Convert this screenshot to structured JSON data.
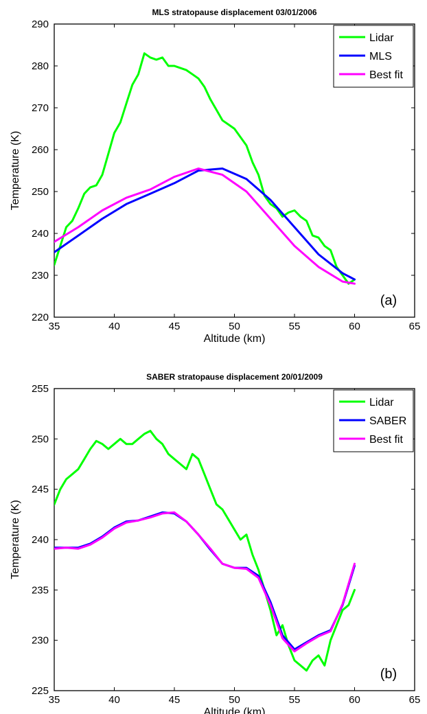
{
  "colors": {
    "lidar": "#00ff00",
    "model": "#0000ff",
    "best_fit": "#ff00ff"
  },
  "chart_data": [
    {
      "type": "line",
      "title": "MLS  stratopause displacement 03/01/2006",
      "xlabel": "Altitude (km)",
      "ylabel": "Temperature (K)",
      "xlim": [
        35,
        65
      ],
      "ylim": [
        220,
        290
      ],
      "xticks": [
        35,
        40,
        45,
        50,
        55,
        60,
        65
      ],
      "yticks": [
        220,
        230,
        240,
        250,
        260,
        270,
        280,
        290
      ],
      "grid": false,
      "legend_position": "top-right",
      "panel_label": "(a)",
      "series": [
        {
          "name": "Lidar",
          "color": "#00ff00",
          "x": [
            35,
            35.5,
            36,
            36.5,
            37,
            37.5,
            38,
            38.5,
            39,
            39.5,
            40,
            40.5,
            41,
            41.5,
            42,
            42.5,
            43,
            43.5,
            44,
            44.5,
            45,
            45.5,
            46,
            46.5,
            47,
            47.5,
            48,
            48.5,
            49,
            49.5,
            50,
            50.5,
            51,
            51.5,
            52,
            52.5,
            53,
            53.5,
            54,
            54.5,
            55,
            55.5,
            56,
            56.5,
            57,
            57.5,
            58,
            58.5,
            59,
            59.5,
            60
          ],
          "y": [
            232.5,
            237,
            241.5,
            243,
            246,
            249.5,
            251,
            251.5,
            254,
            259,
            264,
            266.5,
            271,
            275.5,
            278,
            283,
            282,
            281.5,
            282,
            280,
            280,
            279.5,
            279,
            278,
            277,
            275,
            272,
            269.5,
            267,
            266,
            265,
            263,
            261,
            257,
            254,
            249,
            247,
            246,
            244,
            245,
            245.5,
            244,
            243,
            239.5,
            239,
            237,
            236,
            232,
            230,
            228,
            229
          ]
        },
        {
          "name": "MLS",
          "color": "#0000ff",
          "x": [
            35,
            37,
            39,
            41,
            43,
            45,
            47,
            49,
            51,
            53,
            55,
            57,
            59,
            60
          ],
          "y": [
            235.5,
            239.5,
            243.5,
            247,
            249.5,
            252,
            255,
            255.5,
            253,
            248,
            241.5,
            235,
            230.5,
            229
          ]
        },
        {
          "name": "Best fit",
          "color": "#ff00ff",
          "x": [
            35,
            37,
            39,
            41,
            43,
            45,
            47,
            49,
            51,
            53,
            55,
            57,
            59,
            60
          ],
          "y": [
            238,
            241.5,
            245.5,
            248.5,
            250.5,
            253.5,
            255.5,
            254,
            250,
            243.5,
            237,
            232,
            228.5,
            228
          ]
        }
      ]
    },
    {
      "type": "line",
      "title": "SABER stratopause displacement 20/01/2009",
      "xlabel": "Altitude (km)",
      "ylabel": "Temperature (K)",
      "xlim": [
        35,
        65
      ],
      "ylim": [
        225,
        255
      ],
      "xticks": [
        35,
        40,
        45,
        50,
        55,
        60,
        65
      ],
      "yticks": [
        225,
        230,
        235,
        240,
        245,
        250,
        255
      ],
      "grid": false,
      "legend_position": "top-right",
      "panel_label": "(b)",
      "series": [
        {
          "name": "Lidar",
          "color": "#00ff00",
          "x": [
            35,
            35.5,
            36,
            36.5,
            37,
            37.5,
            38,
            38.5,
            39,
            39.5,
            40,
            40.5,
            41,
            41.5,
            42,
            42.5,
            43,
            43.5,
            44,
            44.5,
            45,
            45.5,
            46,
            46.5,
            47,
            47.5,
            48,
            48.5,
            49,
            49.5,
            50,
            50.5,
            51,
            51.5,
            52,
            52.5,
            53,
            53.5,
            54,
            54.5,
            55,
            55.5,
            56,
            56.5,
            57,
            57.5,
            58,
            58.5,
            59,
            59.5,
            60
          ],
          "y": [
            243.5,
            245,
            246,
            246.5,
            247,
            248,
            249,
            249.8,
            249.5,
            249,
            249.5,
            250,
            249.5,
            249.5,
            250,
            250.5,
            250.8,
            250,
            249.5,
            248.5,
            248,
            247.5,
            247,
            248.5,
            248,
            246.5,
            245,
            243.5,
            243,
            242,
            241,
            240,
            240.5,
            238.5,
            237,
            235,
            233,
            230.5,
            231.5,
            229.5,
            228,
            227.5,
            227,
            228,
            228.5,
            227.5,
            230,
            231.5,
            233,
            233.5,
            235
          ]
        },
        {
          "name": "SABER",
          "color": "#0000ff",
          "x": [
            35,
            36,
            37,
            38,
            39,
            40,
            41,
            42,
            43,
            44,
            45,
            46,
            47,
            48,
            49,
            50,
            51,
            52,
            53,
            54,
            55,
            56,
            57,
            58,
            59,
            60
          ],
          "y": [
            239.2,
            239.2,
            239.2,
            239.6,
            240.3,
            241.2,
            241.8,
            241.9,
            242.3,
            242.7,
            242.6,
            241.8,
            240.5,
            239,
            237.6,
            237.2,
            237.2,
            236.4,
            233.8,
            230.5,
            229.1,
            229.8,
            230.5,
            231,
            233.5,
            237.4
          ]
        },
        {
          "name": "Best fit",
          "color": "#ff00ff",
          "x": [
            35,
            36,
            37,
            38,
            39,
            40,
            41,
            42,
            43,
            44,
            45,
            46,
            47,
            48,
            49,
            50,
            51,
            52,
            53,
            54,
            55,
            56,
            57,
            58,
            59,
            60
          ],
          "y": [
            239.1,
            239.2,
            239.1,
            239.5,
            240.2,
            241.1,
            241.7,
            241.9,
            242.2,
            242.6,
            242.7,
            241.8,
            240.5,
            239.1,
            237.6,
            237.2,
            237.1,
            236.2,
            233.5,
            230.2,
            228.9,
            229.7,
            230.4,
            230.9,
            233.6,
            237.6
          ]
        }
      ]
    }
  ]
}
